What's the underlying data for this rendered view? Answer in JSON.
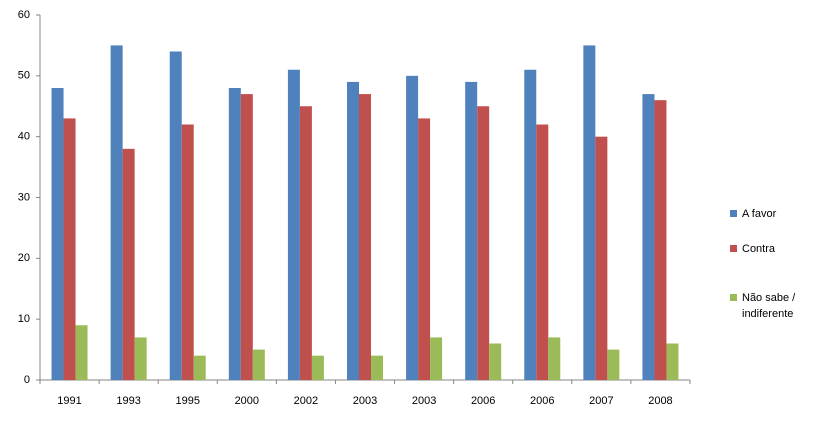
{
  "chart_data": {
    "type": "bar",
    "categories": [
      "1991",
      "1993",
      "1995",
      "2000",
      "2002",
      "2003",
      "2003",
      "2006",
      "2006",
      "2007",
      "2008"
    ],
    "series": [
      {
        "name": "A favor",
        "color": "#4f81bd",
        "values": [
          48,
          55,
          54,
          48,
          51,
          49,
          50,
          49,
          51,
          55,
          47
        ]
      },
      {
        "name": "Contra",
        "color": "#c0504d",
        "values": [
          43,
          38,
          42,
          47,
          45,
          47,
          43,
          45,
          42,
          40,
          46
        ]
      },
      {
        "name": "Não sabe / indiferente",
        "color": "#9bbb59",
        "values": [
          9,
          7,
          4,
          5,
          4,
          4,
          7,
          6,
          7,
          5,
          6
        ]
      }
    ],
    "ylim": [
      0,
      60
    ],
    "yticks": [
      0,
      10,
      20,
      30,
      40,
      50,
      60
    ],
    "grid": false,
    "legend": "right"
  }
}
